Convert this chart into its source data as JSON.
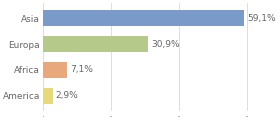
{
  "categories": [
    "Asia",
    "Europa",
    "Africa",
    "America"
  ],
  "values": [
    59.1,
    30.9,
    7.1,
    2.9
  ],
  "labels": [
    "59,1%",
    "30,9%",
    "7,1%",
    "2,9%"
  ],
  "bar_colors": [
    "#7a9bc9",
    "#b5c98a",
    "#e8a87c",
    "#e8d87c"
  ],
  "xlim": [
    0,
    68
  ],
  "background_color": "#ffffff",
  "bar_height": 0.62,
  "label_fontsize": 6.5,
  "tick_fontsize": 6.5,
  "grid_color": "#d8d8d8",
  "grid_xticks": [
    0,
    20,
    40,
    60
  ],
  "text_color": "#666666"
}
